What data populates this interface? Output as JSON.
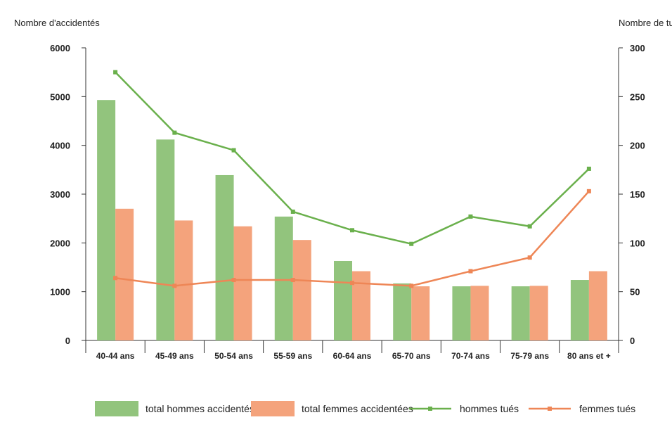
{
  "chart_data": {
    "type": "bar",
    "categories": [
      "40-44 ans",
      "45-49 ans",
      "50-54 ans",
      "55-59 ans",
      "60-64 ans",
      "65-70 ans",
      "70-74 ans",
      "75-79 ans",
      "80 ans et +"
    ],
    "ylabel_left": "Nombre d'accidentés",
    "ylabel_right": "Nombre de tués",
    "ylim_left": [
      0,
      6000
    ],
    "ylim_right": [
      0,
      300
    ],
    "yticks_left": [
      0,
      1000,
      2000,
      3000,
      4000,
      5000,
      6000
    ],
    "yticks_right": [
      0,
      50,
      100,
      150,
      200,
      250,
      300
    ],
    "grid": false,
    "legend_position": "bottom",
    "series": [
      {
        "name": "total hommes accidentés",
        "kind": "bar",
        "axis": "left",
        "color": "#92c47d",
        "values": [
          4930,
          4120,
          3390,
          2540,
          1630,
          1170,
          1110,
          1110,
          1240
        ]
      },
      {
        "name": "total femmes accidentées",
        "kind": "bar",
        "axis": "left",
        "color": "#f4a37c",
        "values": [
          2700,
          2460,
          2340,
          2060,
          1420,
          1110,
          1120,
          1120,
          1420
        ]
      },
      {
        "name": "hommes tués",
        "kind": "line",
        "axis": "right",
        "color": "#6ab04c",
        "values": [
          275,
          213,
          195,
          132,
          113,
          99,
          127,
          117,
          176
        ]
      },
      {
        "name": "femmes tués",
        "kind": "line",
        "axis": "right",
        "color": "#ee8656",
        "values": [
          64,
          56,
          62,
          62,
          59,
          56,
          71,
          85,
          153
        ]
      }
    ]
  }
}
